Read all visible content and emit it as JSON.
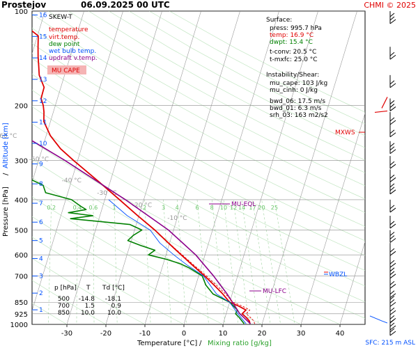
{
  "header": {
    "station": "Prostejov",
    "datetime": "06.09.2025 00 UTC",
    "credit": "CHMI © 2025"
  },
  "axes": {
    "x_title_part1": "Temperature [°C]",
    "x_title_sep": "/",
    "x_title_part2": "Mixing ratio [g/kg]",
    "y_title_part1": "Pressure [hPa]",
    "y_title_sep": "/",
    "y_title_part2": "Altitude [km]",
    "sfc_label": "SFC: 215 m ASL"
  },
  "legend": {
    "title": "SKEW-T",
    "items": [
      {
        "label": "temperature",
        "color": "#e00000"
      },
      {
        "label": "virt.temp.",
        "color": "#e00000"
      },
      {
        "label": "dew point",
        "color": "#008000"
      },
      {
        "label": "wet bulb temp.",
        "color": "#0050ff"
      },
      {
        "label": "updraft v.temp.",
        "color": "#8b008b"
      }
    ],
    "badge": "MU CAPE"
  },
  "surface": {
    "title": "Surface:",
    "rows": [
      {
        "label": "press: 995.7 hPa",
        "color": "#000000"
      },
      {
        "label": "temp: 16.9 °C",
        "color": "#e00000"
      },
      {
        "label": "dwpt: 15.4 °C",
        "color": "#008000"
      },
      {
        "label": "t-conv: 20.5 °C",
        "color": "#000000"
      },
      {
        "label": "t-mxfc: 25.0 °C",
        "color": "#000000"
      }
    ]
  },
  "instability": {
    "title": "Instability/Shear:",
    "rows": [
      "mu_cape: 103 J/kg",
      "mu_cinh: 0 J/kg",
      "bwd_06: 17.5 m/s",
      "bwd_01: 6.3 m/s",
      "srh_03: 163 m2/s2"
    ]
  },
  "table": {
    "headers": [
      "p [hPa]",
      "T",
      "Td [°C]"
    ],
    "rows": [
      [
        "500",
        "-14.8",
        "-18.1"
      ],
      [
        "700",
        "1.5",
        "0.9"
      ],
      [
        "850",
        "10.0",
        "10.0"
      ]
    ]
  },
  "levels": {
    "eql": "MU-EQL",
    "lfc": "MU-LFC",
    "mxws": "MXWS",
    "wbzl": "WBZL"
  },
  "chart_data": {
    "type": "skew-t",
    "pressure_ticks": [
      100,
      200,
      300,
      400,
      500,
      600,
      700,
      850,
      925,
      1000
    ],
    "temperature_ticks": [
      -30,
      -20,
      -10,
      0,
      10,
      20,
      30,
      40
    ],
    "altitude_ticks_km": [
      1,
      2,
      3,
      4,
      5,
      6,
      7,
      8,
      9,
      10,
      11,
      12,
      13,
      14,
      15,
      16
    ],
    "isotherm_labels": [
      -80,
      -70,
      -60,
      -50,
      -40,
      -30,
      -20,
      -10
    ],
    "mixing_ratio_labels": [
      "0.2",
      "0.4",
      "0.6",
      "1",
      "2",
      "3",
      "4",
      "6",
      "8",
      "10",
      "12",
      "14",
      "17",
      "20",
      "25"
    ],
    "ylim_hpa": [
      1000,
      100
    ],
    "xlim_c": [
      -38,
      47
    ],
    "series": [
      {
        "name": "temperature",
        "color": "#e00000",
        "points": [
          [
            995.7,
            16.9
          ],
          [
            975,
            16.5
          ],
          [
            950,
            15.4
          ],
          [
            925,
            14.1
          ],
          [
            900,
            14.8
          ],
          [
            875,
            12.7
          ],
          [
            850,
            10.0
          ],
          [
            800,
            7.6
          ],
          [
            750,
            4.7
          ],
          [
            700,
            1.5
          ],
          [
            650,
            -2.2
          ],
          [
            600,
            -6.1
          ],
          [
            550,
            -10.3
          ],
          [
            500,
            -14.8
          ],
          [
            450,
            -20.3
          ],
          [
            400,
            -26.2
          ],
          [
            350,
            -33.0
          ],
          [
            300,
            -41.0
          ],
          [
            275,
            -45.3
          ],
          [
            250,
            -48.9
          ],
          [
            225,
            -51.7
          ],
          [
            210,
            -52.4
          ],
          [
            200,
            -53.1
          ],
          [
            190,
            -54.2
          ],
          [
            175,
            -54.3
          ],
          [
            160,
            -56.5
          ],
          [
            150,
            -57.3
          ],
          [
            140,
            -58.2
          ],
          [
            130,
            -59.0
          ],
          [
            120,
            -59.8
          ],
          [
            115,
            -62.1
          ],
          [
            110,
            -62.8
          ],
          [
            105,
            -63.5
          ],
          [
            100,
            -64.5
          ]
        ]
      },
      {
        "name": "dew point",
        "color": "#008000",
        "points": [
          [
            995.7,
            15.4
          ],
          [
            950,
            13.6
          ],
          [
            925,
            12.4
          ],
          [
            900,
            12.6
          ],
          [
            850,
            10.0
          ],
          [
            800,
            5.1
          ],
          [
            750,
            2.6
          ],
          [
            700,
            0.9
          ],
          [
            660,
            -3.1
          ],
          [
            640,
            -5.7
          ],
          [
            620,
            -9.5
          ],
          [
            600,
            -14.5
          ],
          [
            580,
            -13.2
          ],
          [
            560,
            -17.2
          ],
          [
            540,
            -20.9
          ],
          [
            520,
            -19.9
          ],
          [
            500,
            -18.1
          ],
          [
            480,
            -21.6
          ],
          [
            460,
            -37.3
          ],
          [
            450,
            -31.8
          ],
          [
            440,
            -38.3
          ],
          [
            430,
            -34.0
          ],
          [
            420,
            -35.6
          ],
          [
            400,
            -38.5
          ],
          [
            380,
            -45.7
          ],
          [
            360,
            -46.9
          ],
          [
            340,
            -51.6
          ],
          [
            320,
            -55.2
          ],
          [
            300,
            -60.9
          ],
          [
            280,
            -64.6
          ],
          [
            260,
            -66.2
          ],
          [
            240,
            -72.4
          ],
          [
            220,
            -77.1
          ],
          [
            200,
            -77.9
          ],
          [
            180,
            -73.4
          ],
          [
            160,
            -72.3
          ],
          [
            150,
            -76.3
          ],
          [
            140,
            -73.9
          ],
          [
            130,
            -75.8
          ],
          [
            120,
            -73.3
          ],
          [
            110,
            -73.4
          ],
          [
            100,
            -70.3
          ]
        ]
      },
      {
        "name": "wet bulb temp.",
        "color": "#0050ff",
        "points": [
          [
            995.7,
            15.9
          ],
          [
            925,
            13.0
          ],
          [
            850,
            10.0
          ],
          [
            800,
            6.0
          ],
          [
            700,
            1.2
          ],
          [
            650,
            -3.5
          ],
          [
            600,
            -8.0
          ],
          [
            550,
            -12.5
          ],
          [
            500,
            -16.0
          ],
          [
            450,
            -23.0
          ],
          [
            400,
            -29.0
          ]
        ]
      },
      {
        "name": "updraft v.temp.",
        "color": "#8b008b",
        "points": [
          [
            995.7,
            17.0
          ],
          [
            925,
            13.5
          ],
          [
            850,
            10.7
          ],
          [
            800,
            8.7
          ],
          [
            700,
            3.8
          ],
          [
            600,
            -2.4
          ],
          [
            500,
            -11.3
          ],
          [
            400,
            -24.7
          ],
          [
            300,
            -43.2
          ],
          [
            250,
            -55.7
          ],
          [
            200,
            -71.0
          ],
          [
            150,
            -90.1
          ],
          [
            130,
            -99.7
          ],
          [
            100,
            -116.8
          ]
        ]
      }
    ],
    "wind_profile_hpa": [
      100,
      130,
      160,
      190,
      210,
      230,
      260,
      290,
      320,
      350,
      400,
      450,
      500,
      550,
      600,
      650,
      700,
      750,
      800,
      850,
      900,
      950,
      990
    ]
  }
}
